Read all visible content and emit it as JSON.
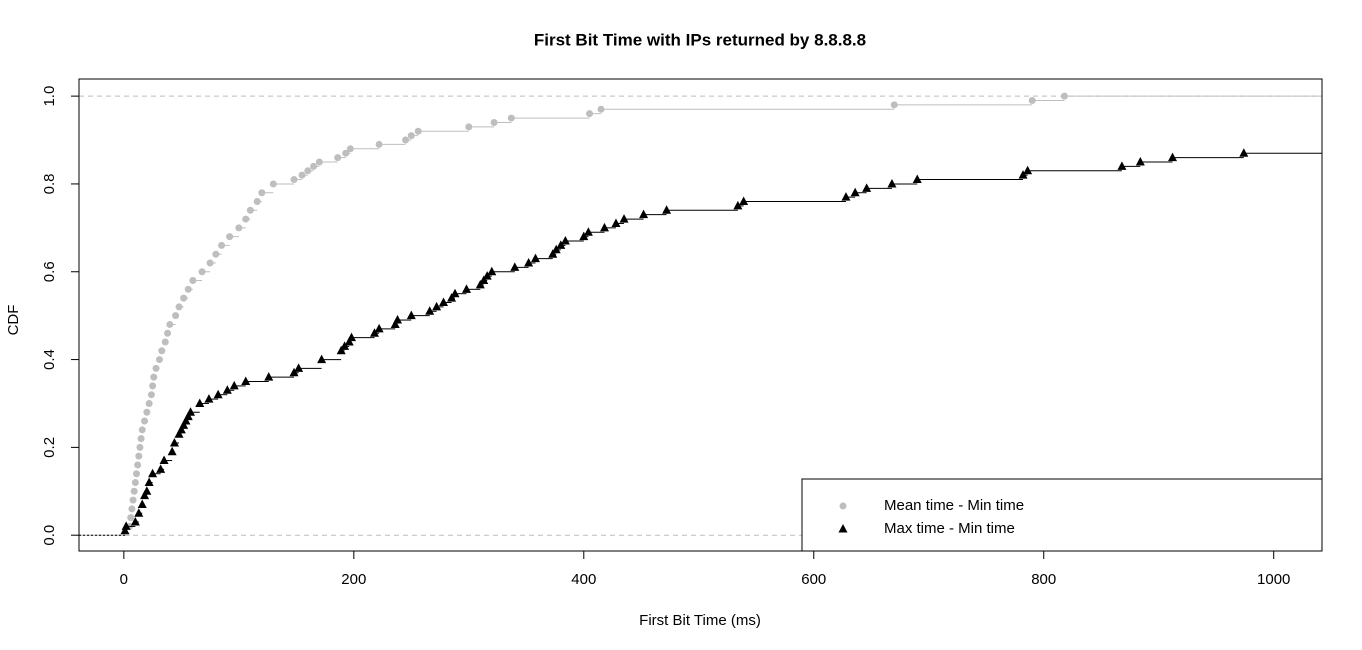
{
  "chart_data": {
    "type": "ecdf",
    "title": "First Bit Time with IPs returned by 8.8.8.8",
    "x_label": "First Bit Time (ms)",
    "y_label": "CDF",
    "xlim": [
      -39,
      1042
    ],
    "ylim": [
      -0.036,
      1.039
    ],
    "xticks": [
      0,
      200,
      400,
      600,
      800,
      1000
    ],
    "yticks": [
      {
        "value": 0,
        "label": "0.0"
      },
      {
        "value": 0.2,
        "label": "0.2"
      },
      {
        "value": 0.4,
        "label": "0.4"
      },
      {
        "value": 0.6,
        "label": "0.6"
      },
      {
        "value": 0.8,
        "label": "0.8"
      },
      {
        "value": 1,
        "label": "1.0"
      }
    ],
    "hlines": [
      0,
      1
    ],
    "legend": "bottomright",
    "series": [
      {
        "name": "Mean time - Min time",
        "color": "#bebebe",
        "marker": "circle",
        "x": [
          5,
          6,
          7,
          8,
          9,
          10,
          11,
          12,
          13,
          14,
          15,
          16,
          18,
          20,
          22,
          24,
          25,
          26,
          28,
          31,
          33,
          36,
          38,
          40,
          45,
          48,
          52,
          56,
          60,
          68,
          75,
          80,
          85,
          92,
          100,
          106,
          110,
          116,
          120,
          130,
          148,
          155,
          160,
          165,
          170,
          186,
          193,
          197,
          222,
          245,
          250,
          256,
          300,
          322,
          337,
          405,
          415,
          670,
          790,
          818
        ],
        "values": [
          0.02,
          0.04,
          0.06,
          0.08,
          0.1,
          0.12,
          0.14,
          0.16,
          0.18,
          0.2,
          0.22,
          0.24,
          0.26,
          0.28,
          0.3,
          0.32,
          0.34,
          0.36,
          0.38,
          0.4,
          0.42,
          0.44,
          0.46,
          0.48,
          0.5,
          0.52,
          0.54,
          0.56,
          0.58,
          0.6,
          0.62,
          0.64,
          0.66,
          0.68,
          0.7,
          0.72,
          0.74,
          0.76,
          0.78,
          0.8,
          0.81,
          0.82,
          0.83,
          0.84,
          0.85,
          0.86,
          0.87,
          0.88,
          0.89,
          0.9,
          0.91,
          0.92,
          0.93,
          0.94,
          0.95,
          0.96,
          0.97,
          0.98,
          0.99,
          1.0
        ]
      },
      {
        "name": "Max time - Min time",
        "color": "#000000",
        "marker": "triangle",
        "x": [
          1,
          2,
          10,
          13,
          16,
          18,
          20,
          22,
          25,
          32,
          35,
          42,
          44,
          48,
          50,
          52,
          54,
          56,
          58,
          66,
          74,
          82,
          90,
          96,
          106,
          126,
          148,
          152,
          172,
          189,
          192,
          196,
          198,
          218,
          222,
          236,
          238,
          250,
          266,
          272,
          278,
          285,
          288,
          298,
          310,
          313,
          316,
          320,
          340,
          352,
          358,
          373,
          376,
          380,
          384,
          400,
          404,
          418,
          428,
          435,
          452,
          472,
          534,
          539,
          628,
          636,
          646,
          668,
          690,
          782,
          786,
          868,
          884,
          912,
          974
        ],
        "values": [
          0.01,
          0.02,
          0.03,
          0.05,
          0.07,
          0.09,
          0.1,
          0.12,
          0.14,
          0.15,
          0.17,
          0.19,
          0.21,
          0.23,
          0.24,
          0.25,
          0.26,
          0.27,
          0.28,
          0.3,
          0.31,
          0.32,
          0.33,
          0.34,
          0.35,
          0.36,
          0.37,
          0.38,
          0.4,
          0.42,
          0.43,
          0.44,
          0.45,
          0.46,
          0.47,
          0.48,
          0.49,
          0.5,
          0.51,
          0.52,
          0.53,
          0.54,
          0.55,
          0.56,
          0.57,
          0.58,
          0.59,
          0.6,
          0.61,
          0.62,
          0.63,
          0.64,
          0.65,
          0.66,
          0.67,
          0.68,
          0.69,
          0.7,
          0.71,
          0.72,
          0.73,
          0.74,
          0.75,
          0.76,
          0.77,
          0.78,
          0.79,
          0.8,
          0.81,
          0.82,
          0.83,
          0.84,
          0.85,
          0.86,
          0.87
        ]
      }
    ]
  }
}
